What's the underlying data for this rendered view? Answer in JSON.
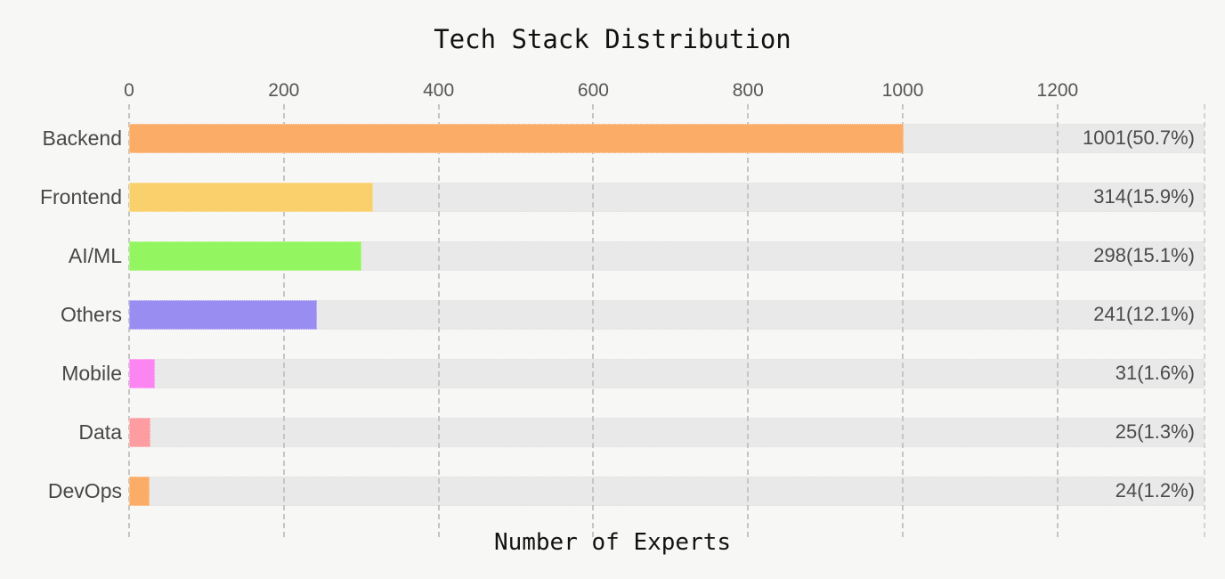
{
  "chart_data": {
    "type": "bar",
    "orientation": "horizontal",
    "title": "Tech Stack Distribution",
    "xlabel": "Number of Experts",
    "axis_position": "top",
    "categories": [
      "Backend",
      "Frontend",
      "AI/ML",
      "Others",
      "Mobile",
      "Data",
      "DevOps"
    ],
    "values": [
      1001,
      314,
      298,
      241,
      31,
      25,
      24
    ],
    "percentages": [
      50.7,
      15.9,
      15.1,
      12.1,
      1.6,
      1.3,
      1.2
    ],
    "value_labels": [
      "1001(50.7%)",
      "314(15.9%)",
      "298(15.1%)",
      "241(12.1%)",
      "31(1.6%)",
      "25(1.3%)",
      "24(1.2%)"
    ],
    "bar_colors": [
      "#FBAC66",
      "#F9D06B",
      "#93F55F",
      "#9A8DF2",
      "#FB86F2",
      "#FD9CA1",
      "#FBAC66"
    ],
    "xticks": [
      0,
      200,
      400,
      600,
      800,
      1000,
      1200
    ],
    "xlim": [
      0,
      1390
    ],
    "grid": {
      "axis": "x",
      "style": "dashed",
      "color": "#C5C5C5"
    },
    "legend": "none",
    "colors": {
      "background": "#F7F7F6",
      "track": "#E9E9E9",
      "title": "#111111",
      "tick_label": "#565656",
      "category_label": "#474747",
      "value_label": "#4A4A4A"
    }
  }
}
